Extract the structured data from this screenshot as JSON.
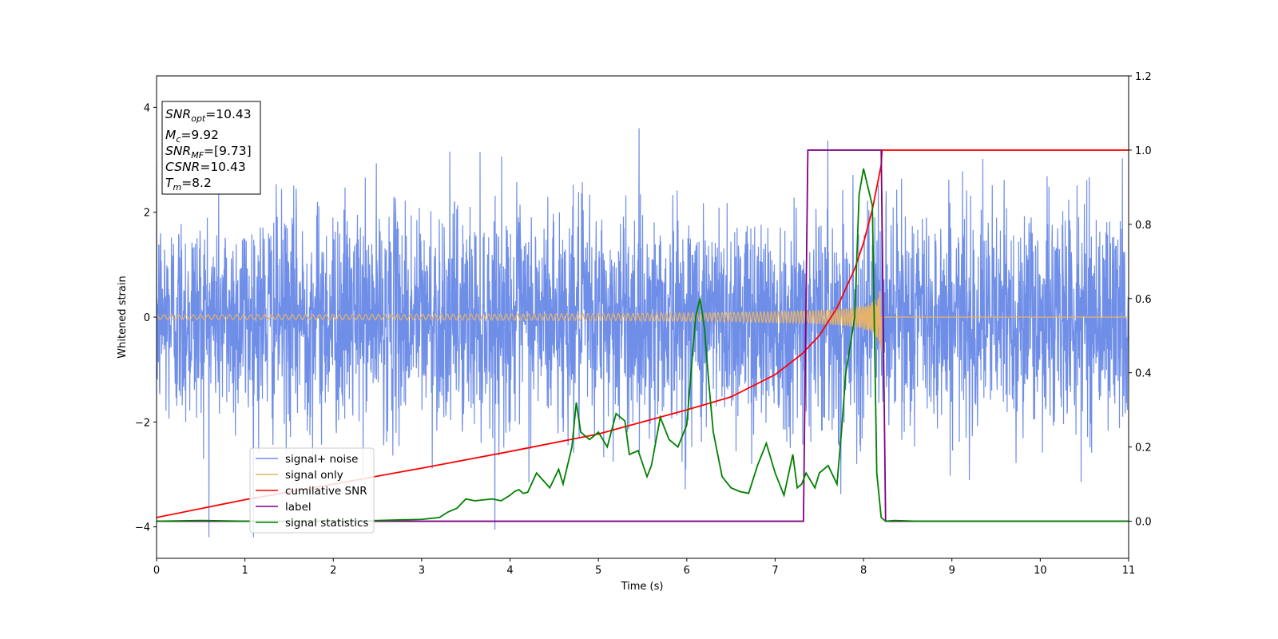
{
  "chart_data": {
    "type": "line",
    "xlabel": "Time (s)",
    "ylabel": "Whitened strain",
    "xlim": [
      0,
      11
    ],
    "ylim_left": [
      -4.6,
      4.6
    ],
    "ylim_right": [
      -0.1,
      1.2
    ],
    "x_ticks": [
      "0",
      "1",
      "2",
      "3",
      "4",
      "5",
      "6",
      "7",
      "8",
      "9",
      "10",
      "11"
    ],
    "y_left_ticks": [
      "−4",
      "−2",
      "0",
      "2",
      "4"
    ],
    "y_left_tick_values": [
      -4,
      -2,
      0,
      2,
      4
    ],
    "y_right_ticks": [
      "0.0",
      "0.2",
      "0.4",
      "0.6",
      "0.8",
      "1.0",
      "1.2"
    ],
    "y_right_tick_values": [
      0.0,
      0.2,
      0.4,
      0.6,
      0.8,
      1.0,
      1.2
    ],
    "grid": false,
    "legend_position": "lower-left",
    "info_box": {
      "snr_opt": {
        "main": "SNR",
        "sub": "opt",
        "value": "=10.43"
      },
      "mc": {
        "main": "M",
        "sub": "c",
        "value": "=9.92"
      },
      "snr_mf": {
        "main": "SNR",
        "sub": "MF",
        "value": "=[9.73]"
      },
      "csnr": {
        "main": "CSNR",
        "sub": "",
        "value": "=10.43"
      },
      "tm": {
        "main": "T",
        "sub": "m",
        "value": "=8.2"
      }
    },
    "series": [
      {
        "name": "signal+ noise",
        "axis": "left",
        "color": "#6f8ee8",
        "description_type": "noise_band",
        "noise_std": 1.0,
        "merger_time": 8.2
      },
      {
        "name": "signal only",
        "axis": "left",
        "color": "#e6b36a",
        "description_type": "chirp",
        "amplitude_start": 0.05,
        "amplitude_peak": 0.7,
        "merger_time": 8.2
      },
      {
        "name": "cumilative SNR",
        "axis": "right",
        "color": "#ff0000",
        "x": [
          0,
          1,
          2,
          3,
          4,
          5,
          6,
          6.5,
          7,
          7.3,
          7.5,
          7.7,
          7.9,
          8.0,
          8.1,
          8.2,
          8.21,
          11
        ],
        "y": [
          0.01,
          0.058,
          0.1,
          0.143,
          0.188,
          0.235,
          0.3,
          0.335,
          0.395,
          0.45,
          0.5,
          0.575,
          0.68,
          0.75,
          0.84,
          0.96,
          1.0,
          1.0
        ]
      },
      {
        "name": "label",
        "axis": "right",
        "color": "#800080",
        "x": [
          0,
          7.32,
          7.37,
          8.2,
          8.25,
          11
        ],
        "y": [
          0,
          0,
          1,
          1,
          0,
          0
        ]
      },
      {
        "name": "signal statistics",
        "axis": "right",
        "color": "#008000",
        "x": [
          0,
          0.5,
          1,
          2,
          2.5,
          3,
          3.2,
          3.3,
          3.4,
          3.5,
          3.6,
          3.8,
          3.9,
          4.0,
          4.05,
          4.1,
          4.15,
          4.2,
          4.3,
          4.45,
          4.55,
          4.6,
          4.7,
          4.75,
          4.8,
          4.85,
          4.9,
          5.0,
          5.1,
          5.2,
          5.3,
          5.35,
          5.45,
          5.55,
          5.6,
          5.7,
          5.8,
          5.9,
          6.0,
          6.1,
          6.15,
          6.2,
          6.25,
          6.3,
          6.4,
          6.5,
          6.6,
          6.7,
          6.8,
          6.9,
          6.95,
          7.0,
          7.1,
          7.2,
          7.25,
          7.3,
          7.35,
          7.45,
          7.5,
          7.6,
          7.7,
          7.75,
          7.8,
          7.9,
          7.95,
          8.0,
          8.05,
          8.1,
          8.15,
          8.2,
          8.25,
          8.35,
          8.6,
          9,
          10,
          11
        ],
        "y": [
          0.0,
          0.002,
          0.0,
          0.0,
          0.002,
          0.005,
          0.01,
          0.025,
          0.035,
          0.06,
          0.055,
          0.06,
          0.055,
          0.07,
          0.08,
          0.085,
          0.075,
          0.078,
          0.13,
          0.09,
          0.14,
          0.1,
          0.2,
          0.32,
          0.24,
          0.23,
          0.22,
          0.24,
          0.2,
          0.29,
          0.27,
          0.18,
          0.19,
          0.12,
          0.15,
          0.28,
          0.22,
          0.2,
          0.26,
          0.55,
          0.6,
          0.52,
          0.37,
          0.24,
          0.12,
          0.09,
          0.08,
          0.075,
          0.15,
          0.21,
          0.17,
          0.13,
          0.07,
          0.18,
          0.09,
          0.1,
          0.13,
          0.09,
          0.13,
          0.15,
          0.1,
          0.24,
          0.4,
          0.55,
          0.88,
          0.95,
          0.9,
          0.85,
          0.13,
          0.01,
          0.0,
          0.002,
          0.0,
          0.0,
          0.0,
          0.0
        ]
      }
    ]
  }
}
